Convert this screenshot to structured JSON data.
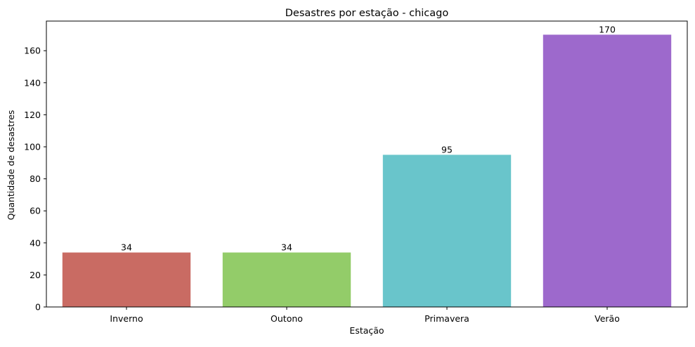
{
  "chart_data": {
    "type": "bar",
    "title": "Desastres por estação - chicago",
    "xlabel": "Estação",
    "ylabel": "Quantidade de desastres",
    "categories": [
      "Inverno",
      "Outono",
      "Primavera",
      "Verão"
    ],
    "values": [
      34,
      34,
      95,
      170
    ],
    "value_labels": [
      "34",
      "34",
      "95",
      "170"
    ],
    "colors": [
      "#c96b63",
      "#93cc69",
      "#69c5cb",
      "#9d69cc"
    ],
    "ylim": [
      0,
      178.5
    ],
    "yticks": [
      0,
      20,
      40,
      60,
      80,
      100,
      120,
      140,
      160
    ],
    "grid": false,
    "legend": "none"
  }
}
